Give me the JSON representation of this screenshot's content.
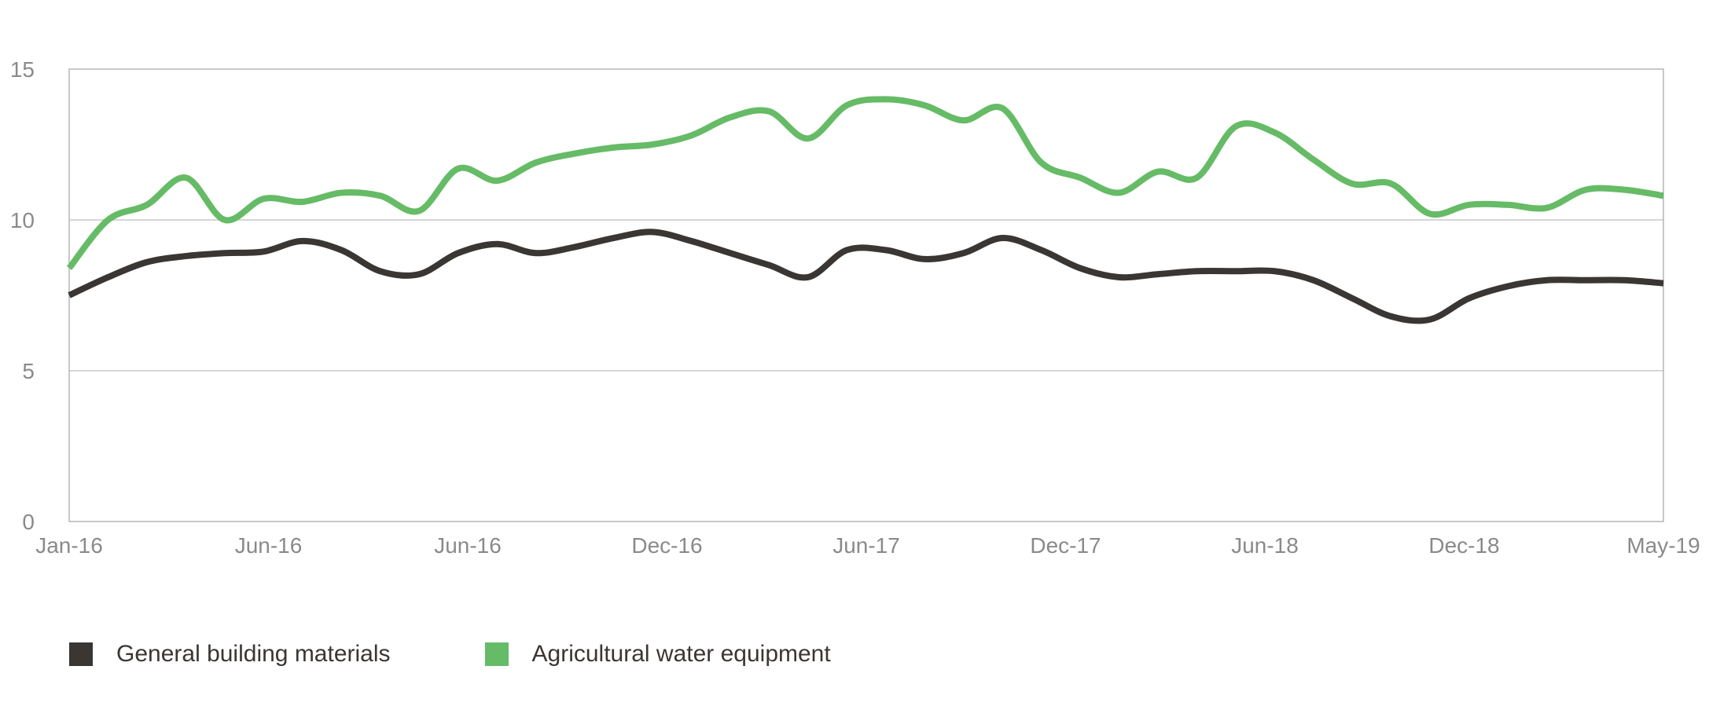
{
  "chart_data": {
    "type": "line",
    "title": "",
    "xlabel": "",
    "ylabel": "",
    "ylim": [
      0,
      15
    ],
    "yticks": [
      0,
      5,
      10,
      15
    ],
    "xticks": [
      "Jan-16",
      "Jun-16",
      "Jun-16",
      "Dec-16",
      "Jun-17",
      "Dec-17",
      "Jun-18",
      "Dec-18",
      "May-19"
    ],
    "grid": "horizontal",
    "legend_position": "bottom-left",
    "x": [
      0,
      1,
      2,
      3,
      4,
      5,
      6,
      7,
      8,
      9,
      10,
      11,
      12,
      13,
      14,
      15,
      16,
      17,
      18,
      19,
      20,
      21,
      22,
      23,
      24,
      25,
      26,
      27,
      28,
      29,
      30,
      31,
      32,
      33,
      34,
      35,
      36,
      37,
      38,
      39,
      40,
      41
    ],
    "series": [
      {
        "name": "General building materials",
        "color": "#3a3633",
        "values": [
          7.5,
          8.1,
          8.6,
          8.8,
          8.9,
          8.95,
          9.3,
          9.0,
          8.3,
          8.2,
          8.9,
          9.2,
          8.9,
          9.1,
          9.4,
          9.6,
          9.3,
          8.9,
          8.5,
          8.1,
          9.0,
          9.0,
          8.7,
          8.9,
          9.4,
          9.0,
          8.4,
          8.1,
          8.2,
          8.3,
          8.3,
          8.3,
          8.0,
          7.4,
          6.8,
          6.7,
          7.4,
          7.8,
          8.0,
          8.0,
          8.0,
          7.9
        ]
      },
      {
        "name": "Agricultural water equipment",
        "color": "#66bb66",
        "values": [
          8.4,
          10.0,
          10.5,
          11.4,
          10.0,
          10.7,
          10.6,
          10.9,
          10.8,
          10.3,
          11.7,
          11.3,
          11.9,
          12.2,
          12.4,
          12.5,
          12.8,
          13.4,
          13.6,
          12.7,
          13.8,
          14.0,
          13.8,
          13.3,
          13.7,
          11.9,
          11.4,
          10.9,
          11.6,
          11.4,
          13.1,
          12.9,
          12.0,
          11.2,
          11.2,
          10.2,
          10.5,
          10.5,
          10.4,
          11.0,
          11.0,
          10.8
        ]
      }
    ]
  }
}
